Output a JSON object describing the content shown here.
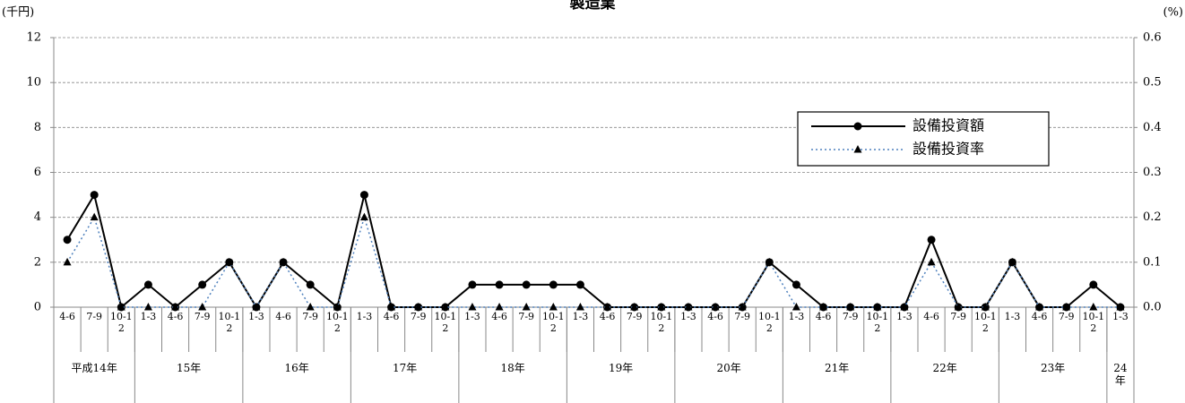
{
  "chart_data": {
    "type": "line",
    "title": "製造業",
    "y_label": "(千円)",
    "y2_label": "(%)",
    "categories": [
      "4-6",
      "7-9",
      "10-12",
      "1-3",
      "4-6",
      "7-9",
      "10-12",
      "1-3",
      "4-6",
      "7-9",
      "10-12",
      "1-3",
      "4-6",
      "7-9",
      "10-12",
      "1-3",
      "4-6",
      "7-9",
      "10-12",
      "1-3",
      "4-6",
      "7-9",
      "10-12",
      "1-3",
      "4-6",
      "7-9",
      "10-12",
      "1-3",
      "4-6",
      "7-9",
      "10-12",
      "1-3",
      "4-6",
      "7-9",
      "10-12",
      "1-3",
      "4-6",
      "7-9",
      "10-12",
      "1-3"
    ],
    "groups": [
      "平成14年",
      "15年",
      "16年",
      "17年",
      "18年",
      "19年",
      "20年",
      "21年",
      "22年",
      "23年",
      "24年"
    ],
    "series": [
      {
        "name": "設備投資額",
        "color": "#000000",
        "marker": "circle",
        "dash": "solid",
        "values": [
          3,
          5,
          0,
          1,
          0,
          1,
          2,
          0,
          2,
          1,
          0,
          5,
          0,
          0,
          0,
          1,
          1,
          1,
          1,
          1,
          0,
          0,
          0,
          0,
          0,
          0,
          2,
          1,
          0,
          0,
          0,
          0,
          3,
          0,
          0,
          2,
          0,
          0,
          1,
          0
        ]
      },
      {
        "name": "設備投資率",
        "color": "#4f81bd",
        "marker": "triangle",
        "dash": "dotted",
        "axis": "y2",
        "values": [
          0.1,
          0.2,
          0,
          0,
          0,
          0,
          0.1,
          0,
          0.1,
          0,
          0,
          0.2,
          0,
          0,
          0,
          0,
          0,
          0,
          0,
          0,
          0,
          0,
          0,
          0,
          0,
          0,
          0.1,
          0,
          0,
          0,
          0,
          0,
          0.1,
          0,
          0,
          0.1,
          0,
          0,
          0,
          0
        ]
      }
    ],
    "ylim": [
      0,
      12
    ],
    "yticks": [
      0,
      2,
      4,
      6,
      8,
      10,
      12
    ],
    "y2lim": [
      0,
      0.6
    ],
    "y2ticks": [
      {
        "value": 0,
        "label": "0.0"
      },
      0.1,
      0.2,
      0.3,
      0.4,
      0.5,
      0.6
    ],
    "grid": true,
    "legend": "upper right"
  }
}
